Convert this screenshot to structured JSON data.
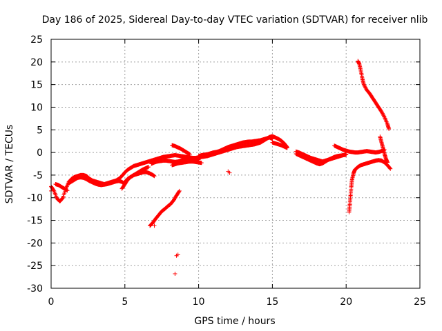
{
  "chart_data": {
    "type": "scatter",
    "title": "Day 186 of 2025, Sidereal Day-to-day VTEC variation (SDTVAR) for receiver nlib",
    "xlabel": "GPS time / hours",
    "ylabel": "SDTVAR / TECUs",
    "xlim": [
      0,
      25
    ],
    "ylim": [
      -30,
      25
    ],
    "xticks": [
      0,
      5,
      10,
      15,
      20,
      25
    ],
    "yticks": [
      -30,
      -25,
      -20,
      -15,
      -10,
      -5,
      0,
      5,
      10,
      15,
      20,
      25
    ],
    "grid": true,
    "marker": "+",
    "color": "#ff0000",
    "series": [
      {
        "name": "t1",
        "x": [
          0.0,
          0.2,
          0.4,
          0.6,
          0.8,
          1.0,
          1.2,
          1.4,
          1.6,
          1.8,
          2.0,
          2.2,
          2.4,
          2.6,
          2.8,
          3.0,
          3.2,
          3.4,
          3.6,
          3.8,
          4.0,
          4.2,
          4.4,
          4.6,
          4.8,
          5.0,
          5.2,
          5.4,
          5.6,
          5.8,
          6.0,
          6.2,
          6.4,
          6.6,
          6.8,
          7.0,
          7.2,
          7.4,
          7.6,
          7.8,
          8.0,
          8.2,
          8.4,
          8.6,
          8.8,
          9.0,
          9.2,
          9.4,
          9.6,
          9.8,
          10.0,
          10.2,
          10.4,
          10.6,
          10.8,
          11.0,
          11.2,
          11.4,
          11.6,
          11.8,
          12.0,
          12.2,
          12.4,
          12.6,
          12.8,
          13.0,
          13.2,
          13.4,
          13.6,
          13.8,
          14.0,
          14.2,
          14.4,
          14.6,
          14.8,
          15.0,
          15.2,
          15.4,
          15.6,
          15.8,
          16.0
        ],
        "y": [
          -7.5,
          -8.5,
          -10.2,
          -10.8,
          -10.0,
          -8.0,
          -6.5,
          -5.8,
          -5.4,
          -5.2,
          -5.0,
          -5.0,
          -5.2,
          -5.8,
          -6.2,
          -6.4,
          -6.6,
          -6.8,
          -7.0,
          -6.8,
          -6.6,
          -6.4,
          -6.2,
          -5.8,
          -5.2,
          -4.4,
          -3.8,
          -3.4,
          -3.0,
          -2.8,
          -2.6,
          -2.4,
          -2.2,
          -2.0,
          -1.8,
          -1.6,
          -1.4,
          -1.2,
          -1.0,
          -0.9,
          -0.8,
          -0.7,
          -0.6,
          -0.7,
          -0.8,
          -0.9,
          -1.0,
          -1.1,
          -1.2,
          -1.2,
          -1.1,
          -1.0,
          -0.9,
          -0.8,
          -0.6,
          -0.4,
          -0.2,
          0.0,
          0.2,
          0.4,
          0.6,
          0.8,
          1.0,
          1.2,
          1.3,
          1.4,
          1.5,
          1.6,
          1.7,
          1.8,
          2.0,
          2.2,
          2.6,
          3.0,
          3.4,
          3.6,
          3.3,
          3.0,
          2.6,
          2.0,
          1.2
        ]
      },
      {
        "name": "t2",
        "x": [
          0.3,
          0.5,
          0.7,
          0.9,
          1.1
        ],
        "y": [
          -7.0,
          -7.2,
          -7.6,
          -8.0,
          -8.4
        ]
      },
      {
        "name": "t3",
        "x": [
          1.2,
          1.4,
          1.6,
          1.8,
          2.0,
          2.2,
          2.4,
          2.6,
          2.8,
          3.0,
          3.2,
          3.4,
          3.6,
          3.8,
          4.0,
          4.2,
          4.4,
          4.6,
          4.8,
          5.0
        ],
        "y": [
          -6.8,
          -6.4,
          -6.0,
          -5.6,
          -5.5,
          -5.6,
          -5.9,
          -6.3,
          -6.6,
          -6.9,
          -7.1,
          -7.2,
          -7.1,
          -7.0,
          -6.8,
          -6.6,
          -6.4,
          -6.3,
          -6.5,
          -7.0
        ]
      },
      {
        "name": "t4",
        "x": [
          4.8,
          5.0,
          5.2,
          5.4,
          5.6,
          5.8,
          6.0,
          6.2,
          6.4,
          6.6
        ],
        "y": [
          -8.0,
          -7.0,
          -6.0,
          -5.4,
          -5.0,
          -4.6,
          -4.2,
          -3.8,
          -3.5,
          -3.2
        ]
      },
      {
        "name": "t5",
        "x": [
          5.0,
          5.2,
          5.4,
          5.6,
          5.8,
          6.0,
          6.2,
          6.4,
          6.6,
          6.8,
          7.0
        ],
        "y": [
          -6.5,
          -5.8,
          -5.4,
          -5.0,
          -4.8,
          -4.6,
          -4.4,
          -4.3,
          -4.5,
          -4.8,
          -5.2
        ]
      },
      {
        "name": "t6",
        "x": [
          6.8,
          7.0,
          7.2,
          7.4,
          7.6,
          7.8,
          8.0,
          8.2,
          8.4,
          8.6,
          8.8,
          9.0,
          9.2,
          9.4,
          9.6,
          9.8,
          10.0
        ],
        "y": [
          -2.5,
          -2.2,
          -2.0,
          -1.9,
          -1.8,
          -1.8,
          -1.9,
          -2.0,
          -2.1,
          -2.0,
          -1.8,
          -1.6,
          -1.5,
          -1.4,
          -1.4,
          -1.5,
          -1.6
        ]
      },
      {
        "name": "t7",
        "x": [
          8.2,
          8.4,
          8.6,
          8.8,
          9.0,
          9.2,
          9.4,
          9.6,
          9.8,
          10.0,
          10.2
        ],
        "y": [
          -2.8,
          -2.6,
          -2.4,
          -2.3,
          -2.2,
          -2.1,
          -2.0,
          -2.0,
          -2.1,
          -2.2,
          -2.3
        ]
      },
      {
        "name": "t8",
        "x": [
          8.2,
          8.4,
          8.6,
          8.8,
          9.0,
          9.2,
          9.4
        ],
        "y": [
          1.6,
          1.4,
          1.1,
          0.8,
          0.4,
          0.0,
          -0.4
        ]
      },
      {
        "name": "t9",
        "x": [
          6.7,
          6.9,
          7.1,
          7.3,
          7.5,
          7.7,
          7.9,
          8.1,
          8.3,
          8.5,
          8.7
        ],
        "y": [
          -16.2,
          -15.5,
          -14.6,
          -13.8,
          -13.0,
          -12.5,
          -11.9,
          -11.4,
          -10.6,
          -9.5,
          -8.5
        ]
      },
      {
        "name": "t10",
        "x": [
          10.0,
          10.2,
          10.4,
          10.6,
          10.8,
          11.0,
          11.2,
          11.4,
          11.6,
          11.8,
          12.0,
          12.2,
          12.4,
          12.6,
          12.8,
          13.0,
          13.2,
          13.4,
          13.6,
          13.8,
          14.0,
          14.2,
          14.4,
          14.6,
          14.8,
          15.0
        ],
        "y": [
          -0.8,
          -0.6,
          -0.5,
          -0.4,
          -0.2,
          0.0,
          0.1,
          0.3,
          0.6,
          0.9,
          1.2,
          1.4,
          1.6,
          1.8,
          2.0,
          2.2,
          2.3,
          2.4,
          2.4,
          2.5,
          2.6,
          2.7,
          2.9,
          3.1,
          3.3,
          3.0
        ]
      },
      {
        "name": "t11",
        "x": [
          15.0,
          15.2,
          15.4,
          15.6,
          15.8,
          16.0
        ],
        "y": [
          2.2,
          2.0,
          1.8,
          1.6,
          1.3,
          1.0
        ]
      },
      {
        "name": "t12",
        "x": [
          16.6,
          16.8,
          17.0,
          17.2,
          17.4,
          17.6,
          17.8,
          18.0,
          18.2,
          18.4,
          18.6,
          18.8,
          19.0,
          19.2,
          19.4,
          19.6,
          19.8,
          20.0
        ],
        "y": [
          -0.3,
          -0.6,
          -0.9,
          -1.2,
          -1.5,
          -1.8,
          -2.1,
          -2.4,
          -2.6,
          -2.4,
          -2.0,
          -1.6,
          -1.3,
          -1.0,
          -0.8,
          -0.7,
          -0.6,
          -0.5
        ]
      },
      {
        "name": "t13",
        "x": [
          16.6,
          16.8,
          17.0,
          17.2,
          17.4,
          17.6,
          17.8,
          18.0,
          18.2,
          18.4,
          18.6,
          18.8,
          19.0,
          19.2,
          19.4,
          19.6,
          19.8,
          20.0
        ],
        "y": [
          0.2,
          0.0,
          -0.3,
          -0.6,
          -0.9,
          -1.2,
          -1.4,
          -1.6,
          -1.8,
          -2.0,
          -1.8,
          -1.6,
          -1.4,
          -1.2,
          -1.0,
          -0.8,
          -0.6,
          -0.4
        ]
      },
      {
        "name": "t14",
        "x": [
          19.2,
          19.4,
          19.6,
          19.8,
          20.0,
          20.2,
          20.4,
          20.6,
          20.8,
          21.0,
          21.2,
          21.4,
          21.6,
          21.8,
          22.0,
          22.2,
          22.4,
          22.6
        ],
        "y": [
          1.5,
          1.2,
          0.9,
          0.6,
          0.4,
          0.2,
          0.1,
          0.0,
          0.0,
          0.1,
          0.2,
          0.3,
          0.2,
          0.1,
          0.0,
          0.1,
          0.3,
          0.6
        ]
      },
      {
        "name": "t15",
        "x": [
          20.8,
          20.9,
          21.0,
          21.1,
          21.2,
          21.4,
          21.6,
          21.8,
          22.0,
          22.2,
          22.4,
          22.6,
          22.8,
          22.9
        ],
        "y": [
          20.2,
          19.5,
          18.0,
          16.3,
          15.0,
          13.8,
          13.0,
          12.0,
          11.0,
          10.0,
          9.0,
          7.8,
          6.3,
          5.2
        ]
      },
      {
        "name": "t16",
        "x": [
          20.2,
          20.25,
          20.3,
          20.35,
          20.4,
          20.5,
          20.6,
          20.8,
          21.0,
          21.2,
          21.4,
          21.6,
          21.8,
          22.0,
          22.2,
          22.4,
          22.6,
          22.8,
          23.0
        ],
        "y": [
          -13.2,
          -11.5,
          -9.5,
          -7.5,
          -6.0,
          -4.6,
          -3.8,
          -3.2,
          -2.8,
          -2.6,
          -2.4,
          -2.2,
          -2.0,
          -1.8,
          -1.7,
          -1.8,
          -2.2,
          -2.8,
          -3.6
        ]
      },
      {
        "name": "t17",
        "x": [
          22.3,
          22.4,
          22.5,
          22.6,
          22.7,
          22.8
        ],
        "y": [
          3.5,
          2.2,
          1.0,
          -0.3,
          -1.4,
          -2.2
        ]
      },
      {
        "name": "iso",
        "x": [
          0.0,
          8.5,
          8.6,
          8.4,
          12.0,
          12.1,
          7.0
        ],
        "y": [
          -8.5,
          -22.8,
          -22.6,
          -26.8,
          -4.2,
          -4.5,
          -16.2
        ]
      }
    ]
  }
}
